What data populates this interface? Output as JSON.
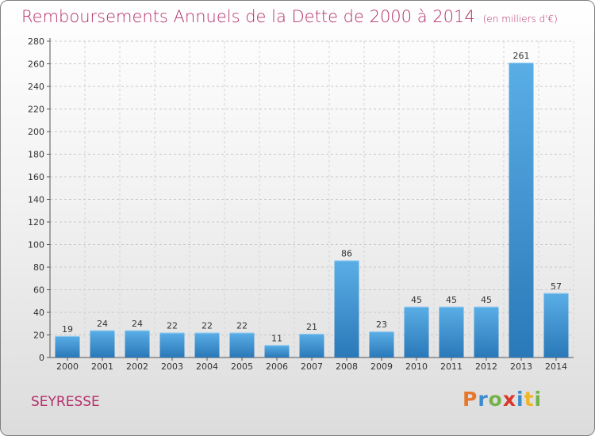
{
  "title": "Remboursements Annuels de la Dette de 2000 à 2014",
  "unit": "(en milliers d'€)",
  "commune": "SEYRESSE",
  "logo": {
    "text": "Proxiti",
    "letters": [
      {
        "ch": "P",
        "color": "#e8772e"
      },
      {
        "ch": "r",
        "color": "#3c8cd0"
      },
      {
        "ch": "o",
        "color": "#74b24a"
      },
      {
        "ch": "x",
        "color": "#d9362c"
      },
      {
        "ch": "i",
        "color": "#3c8cd0"
      },
      {
        "ch": "t",
        "color": "#f0b429"
      },
      {
        "ch": "i",
        "color": "#74b24a"
      }
    ]
  },
  "colors": {
    "title": "#b5306a",
    "bar_light": "#5aaee6",
    "bar_dark": "#2a78b8"
  },
  "chart_data": {
    "type": "bar",
    "categories": [
      "2000",
      "2001",
      "2002",
      "2003",
      "2004",
      "2005",
      "2006",
      "2007",
      "2008",
      "2009",
      "2010",
      "2011",
      "2012",
      "2013",
      "2014"
    ],
    "values": [
      19,
      24,
      24,
      22,
      22,
      22,
      11,
      21,
      86,
      23,
      45,
      45,
      45,
      261,
      57
    ],
    "ylim": [
      0,
      280
    ],
    "yticks": [
      0,
      20,
      40,
      60,
      80,
      100,
      120,
      140,
      160,
      180,
      200,
      220,
      240,
      260,
      280
    ],
    "grid": true
  }
}
